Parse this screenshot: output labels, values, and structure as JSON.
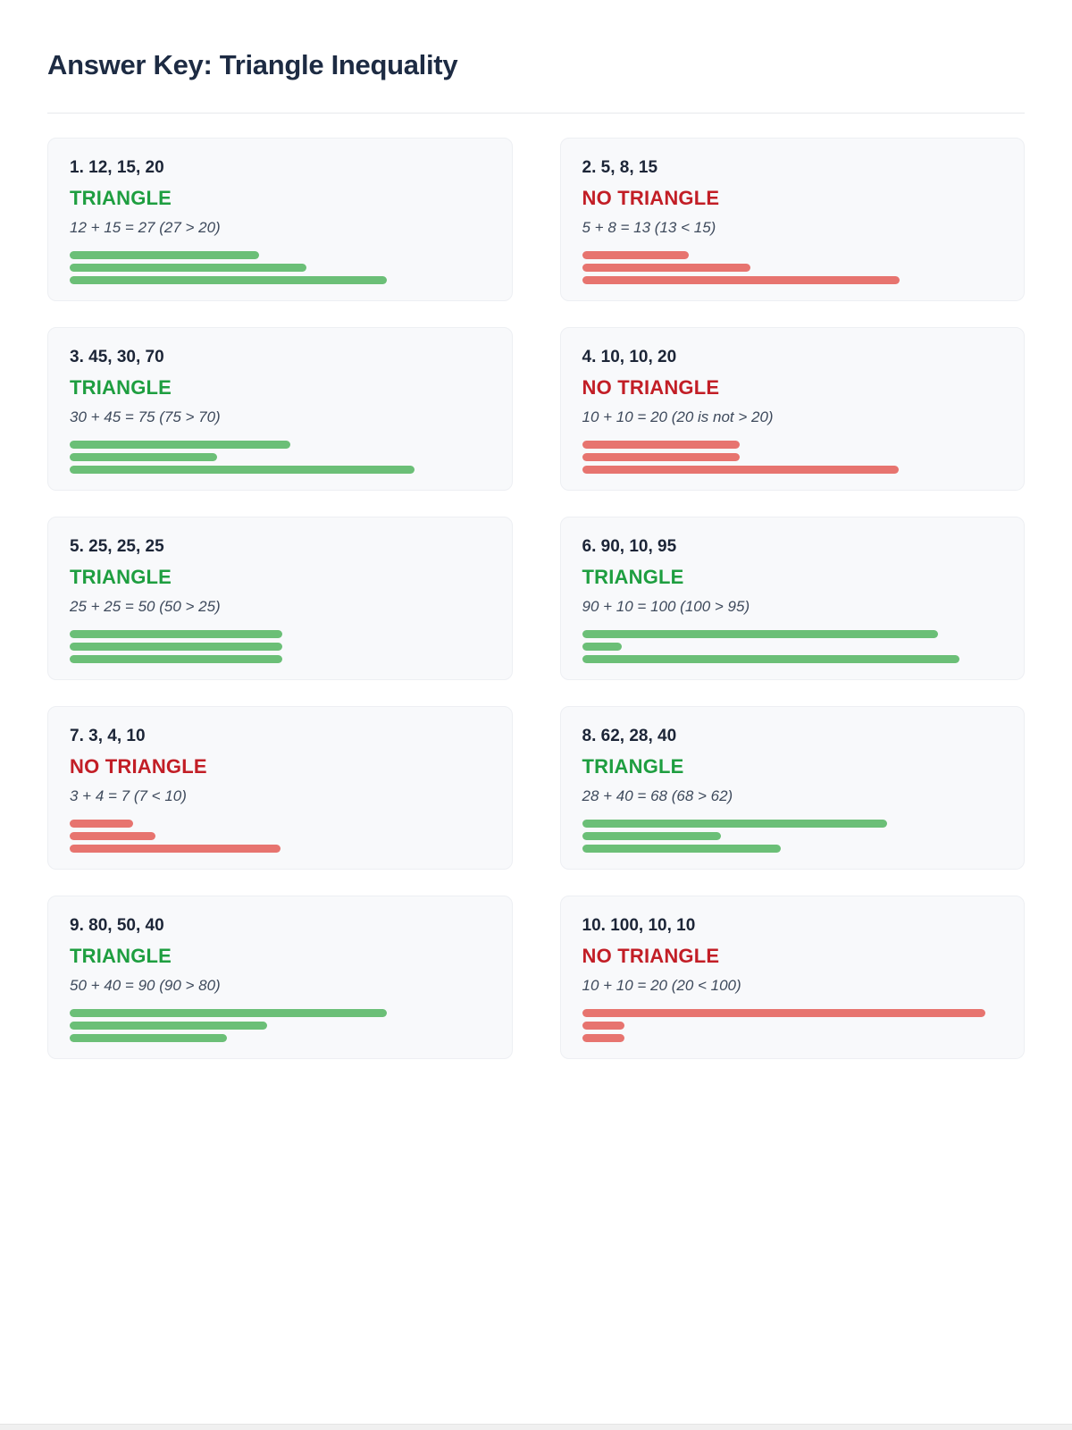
{
  "page": {
    "title": "Answer Key: Triangle Inequality",
    "colors": {
      "triangle_text": "#1e9e40",
      "no_triangle_text": "#c21e26",
      "bar_green": "#6bbf77",
      "bar_red": "#e7746f",
      "title_text": "#1d2b43",
      "card_background": "#f8f9fb"
    }
  },
  "problems": [
    {
      "label": "1. 12, 15, 20",
      "sides": [
        12,
        15,
        20
      ],
      "verdict": "TRIANGLE",
      "is_triangle": true,
      "explanation": "12 + 15 = 27 (27 > 20)",
      "bar_widths_pct": [
        45.1,
        56.4,
        75.4
      ]
    },
    {
      "label": "2. 5, 8, 15",
      "sides": [
        5,
        8,
        15
      ],
      "verdict": "NO TRIANGLE",
      "is_triangle": false,
      "explanation": "5 + 8 = 13 (13 < 15)",
      "bar_widths_pct": [
        25.4,
        40.0,
        75.6
      ]
    },
    {
      "label": "3. 45, 30, 70",
      "sides": [
        45,
        30,
        70
      ],
      "verdict": "TRIANGLE",
      "is_triangle": true,
      "explanation": "30 + 45 = 75 (75 > 70)",
      "bar_widths_pct": [
        52.5,
        35.0,
        82.0
      ]
    },
    {
      "label": "4. 10, 10, 20",
      "sides": [
        10,
        10,
        20
      ],
      "verdict": "NO TRIANGLE",
      "is_triangle": false,
      "explanation": "10 + 10 = 20 (20 is not > 20)",
      "bar_widths_pct": [
        37.5,
        37.5,
        75.4
      ]
    },
    {
      "label": "5. 25, 25, 25",
      "sides": [
        25,
        25,
        25
      ],
      "verdict": "TRIANGLE",
      "is_triangle": true,
      "explanation": "25 + 25 = 50 (50 > 25)",
      "bar_widths_pct": [
        50.6,
        50.6,
        50.6
      ]
    },
    {
      "label": "6. 90, 10, 95",
      "sides": [
        90,
        10,
        95
      ],
      "verdict": "TRIANGLE",
      "is_triangle": true,
      "explanation": "90 + 10 = 100 (100 > 95)",
      "bar_widths_pct": [
        84.7,
        9.5,
        89.8
      ]
    },
    {
      "label": "7. 3, 4, 10",
      "sides": [
        3,
        4,
        10
      ],
      "verdict": "NO TRIANGLE",
      "is_triangle": false,
      "explanation": "3 + 4 = 7 (7 < 10)",
      "bar_widths_pct": [
        15.0,
        20.3,
        50.2
      ]
    },
    {
      "label": "8. 62, 28, 40",
      "sides": [
        62,
        28,
        40
      ],
      "verdict": "TRIANGLE",
      "is_triangle": true,
      "explanation": "28 + 40 = 68 (68 > 62)",
      "bar_widths_pct": [
        72.5,
        33.1,
        47.2
      ]
    },
    {
      "label": "9. 80, 50, 40",
      "sides": [
        80,
        50,
        40
      ],
      "verdict": "TRIANGLE",
      "is_triangle": true,
      "explanation": "50 + 40 = 90 (90 > 80)",
      "bar_widths_pct": [
        75.4,
        47.0,
        37.5
      ]
    },
    {
      "label": "10. 100, 10, 10",
      "sides": [
        100,
        10,
        10
      ],
      "verdict": "NO TRIANGLE",
      "is_triangle": false,
      "explanation": "10 + 10 = 20 (20 < 100)",
      "bar_widths_pct": [
        96.0,
        10.0,
        10.0
      ]
    }
  ]
}
